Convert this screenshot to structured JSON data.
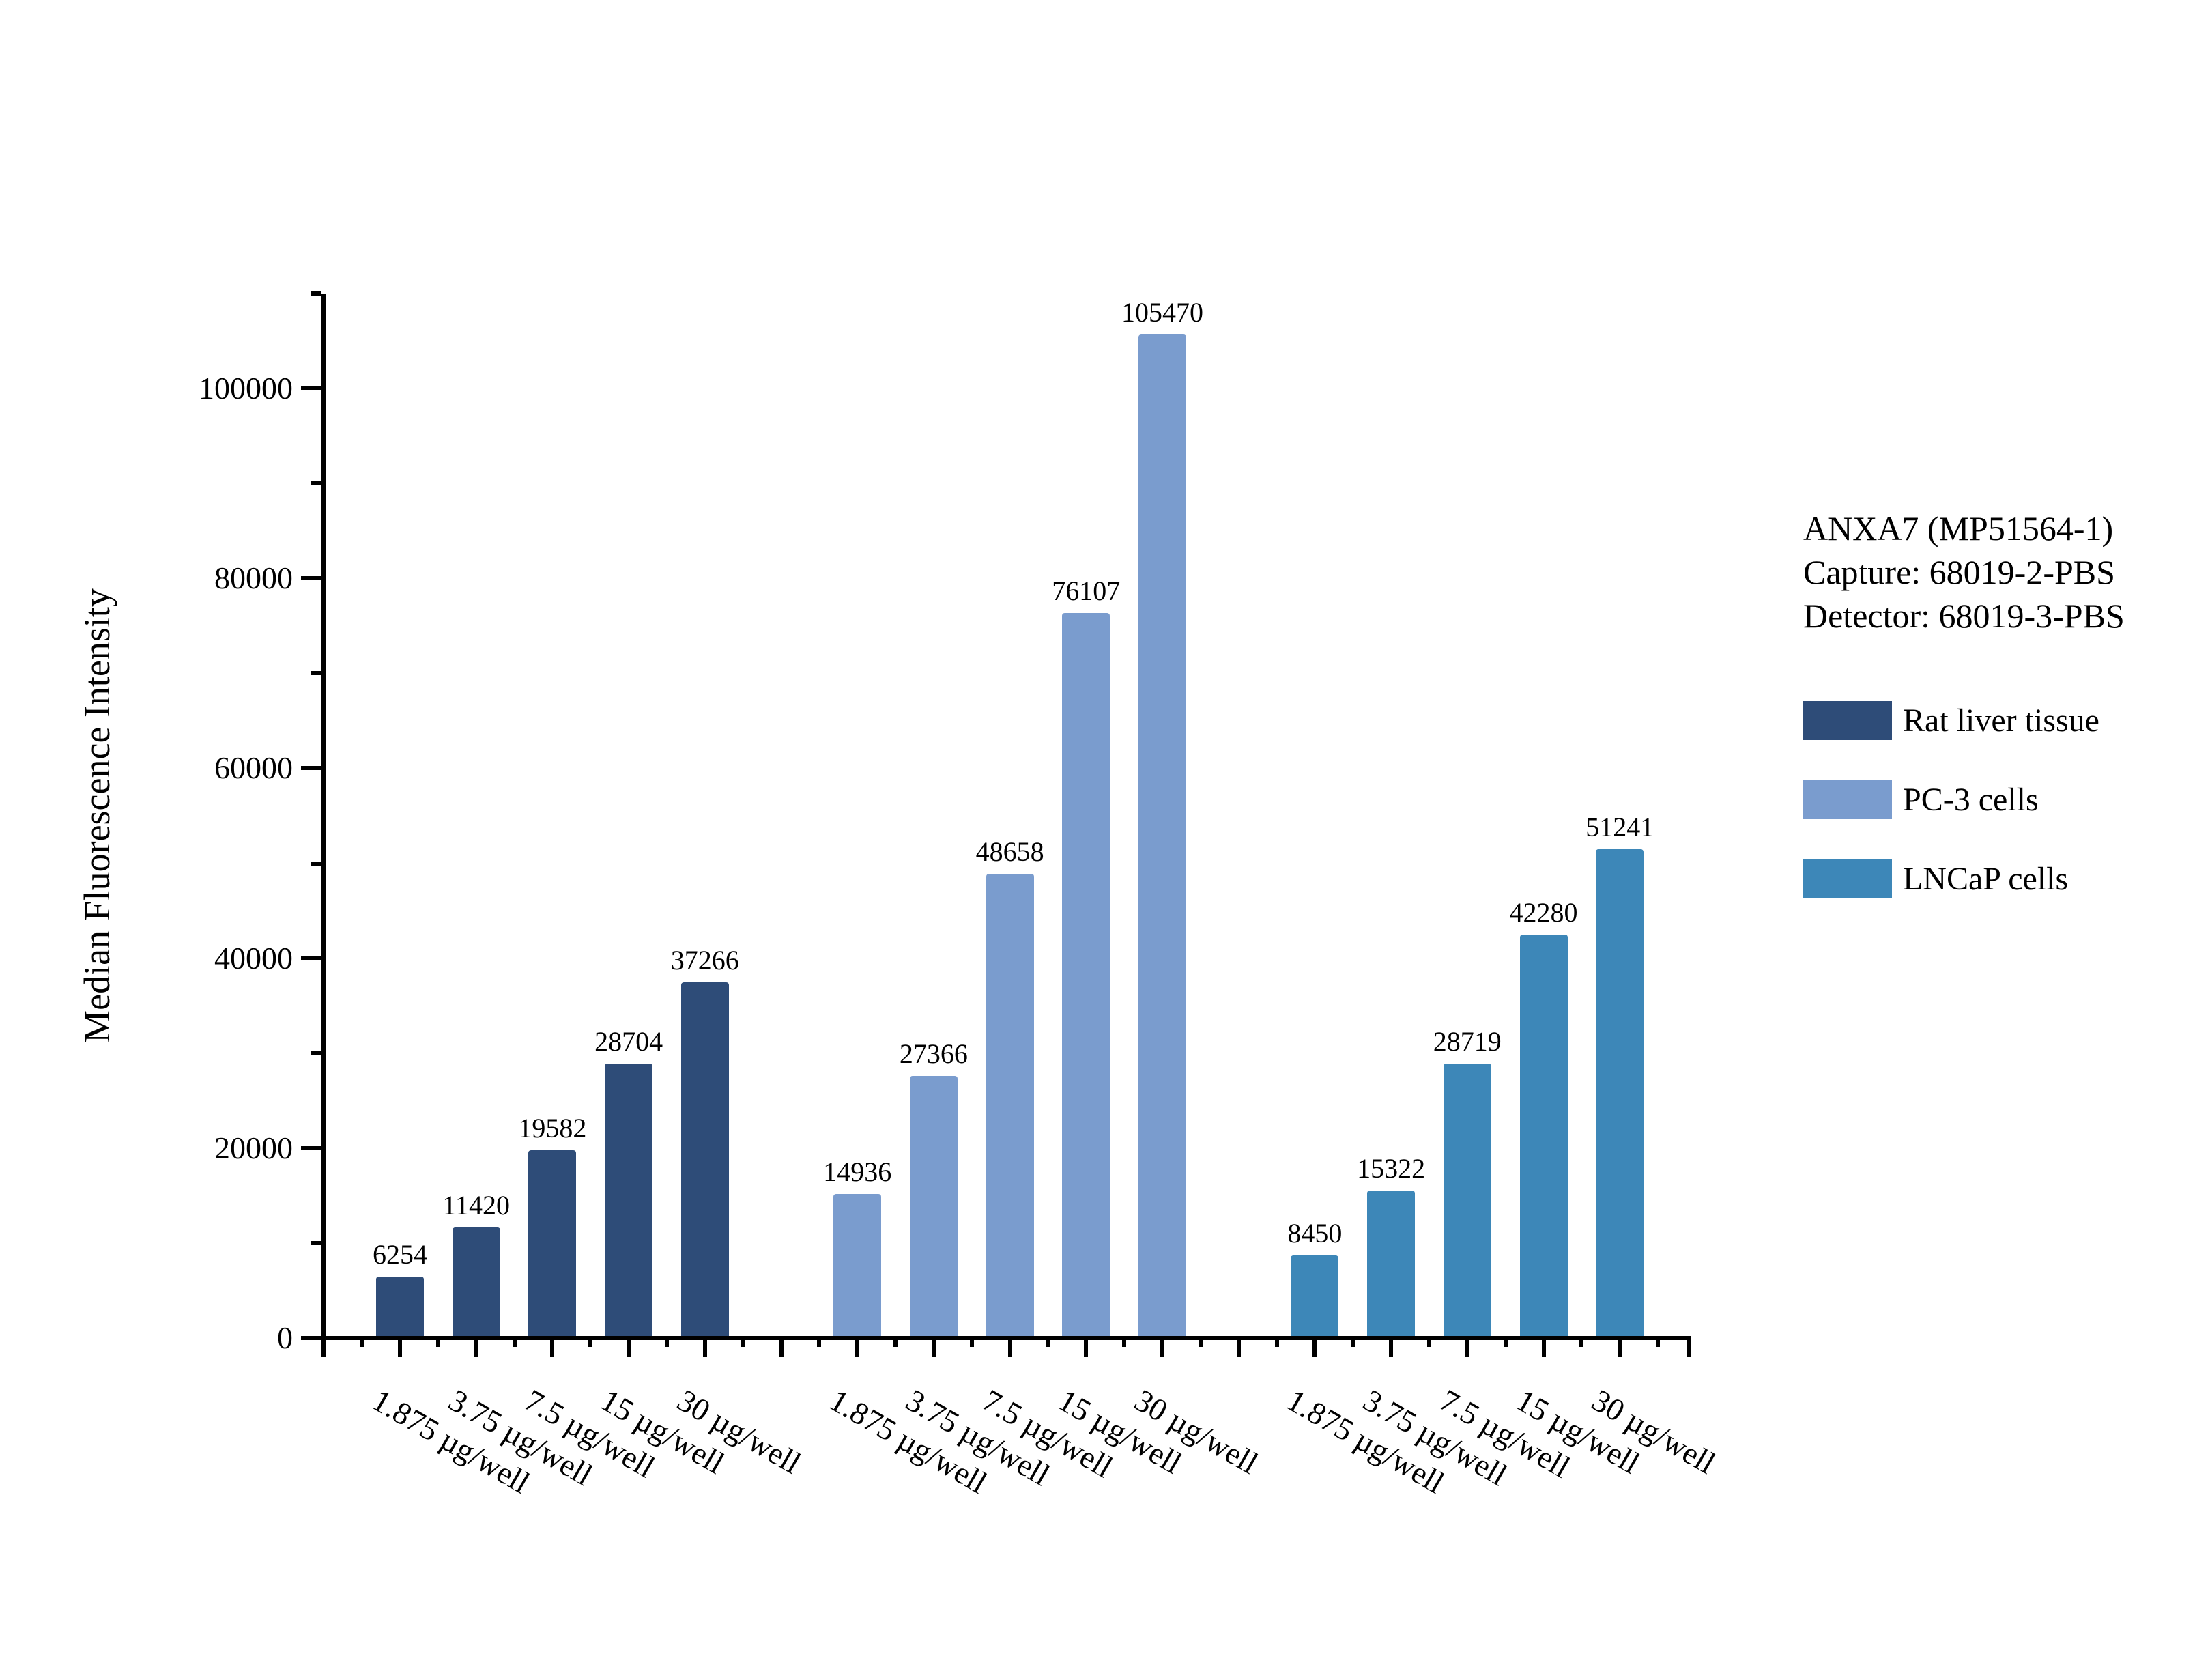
{
  "page": {
    "background": "#ffffff"
  },
  "annotation": {
    "line1": "ANXA7 (MP51564-1)",
    "line2": "Capture: 68019-2-PBS",
    "line3": "Detector: 68019-3-PBS"
  },
  "legend": [
    {
      "label": "Rat liver tissue",
      "color": "#2E4C78"
    },
    {
      "label": "PC-3 cells",
      "color": "#7A9CCE"
    },
    {
      "label": "LNCaP cells",
      "color": "#3D87B8"
    }
  ],
  "chart_data": {
    "type": "bar",
    "title": "",
    "ylabel": "Median Fluorescence Intensity",
    "xlabel": "",
    "ylim": [
      0,
      110000
    ],
    "ytick_major_step": 20000,
    "ytick_minor_step": 10000,
    "ytick_labels": [
      "0",
      "20000",
      "40000",
      "60000",
      "80000",
      "100000"
    ],
    "grid": false,
    "legend_position": "right",
    "bar_value_labels_shown": true,
    "categories": [
      "1.875 µg/well",
      "3.75 µg/well",
      "7.5 µg/well",
      "15 µg/well",
      "30 µg/well"
    ],
    "series": [
      {
        "name": "Rat liver tissue",
        "color": "#2E4C78",
        "values": [
          6254,
          11420,
          19582,
          28704,
          37266
        ]
      },
      {
        "name": "PC-3 cells",
        "color": "#7A9CCE",
        "values": [
          14936,
          27366,
          48658,
          76107,
          105470
        ]
      },
      {
        "name": "LNCaP cells",
        "color": "#3D87B8",
        "values": [
          8450,
          15322,
          28719,
          42280,
          51241
        ]
      }
    ]
  }
}
